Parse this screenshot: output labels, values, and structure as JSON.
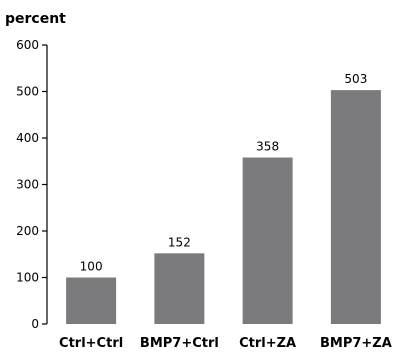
{
  "chart_data": {
    "type": "bar",
    "ylabel": "percent",
    "categories": [
      "Ctrl+Ctrl",
      "BMP7+Ctrl",
      "Ctrl+ZA",
      "BMP7+ZA"
    ],
    "values": [
      100,
      152,
      358,
      503
    ],
    "data_labels": [
      "100",
      "152",
      "358",
      "503"
    ],
    "ylim": [
      0,
      600
    ],
    "yticks": [
      0,
      100,
      200,
      300,
      400,
      500,
      600
    ],
    "grid": false,
    "legend": "none",
    "bar_color": "#7b7b7d"
  }
}
